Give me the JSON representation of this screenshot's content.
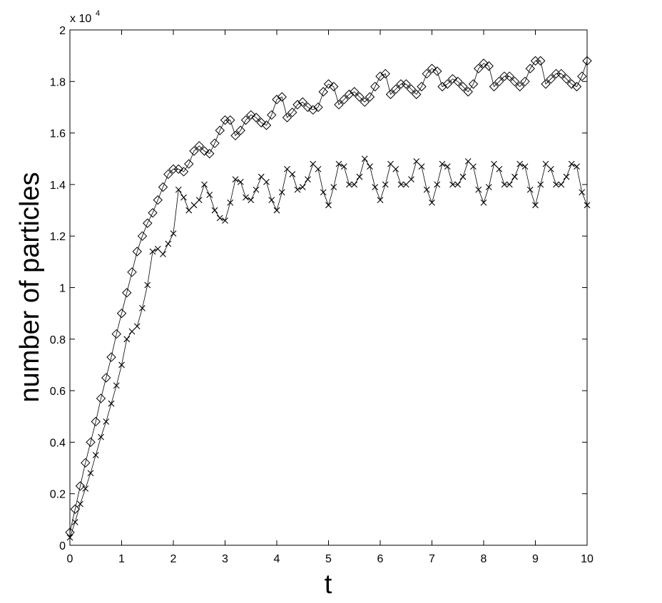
{
  "chart_data": {
    "type": "line",
    "ylabel": "number of particles",
    "xlabel": "t",
    "y_scale_label": "x 10",
    "y_scale_exponent": "4",
    "x": [
      0,
      0.1,
      0.2,
      0.3,
      0.4,
      0.5,
      0.6,
      0.7,
      0.8,
      0.9,
      1,
      1.1,
      1.2,
      1.3,
      1.4,
      1.5,
      1.6,
      1.7,
      1.8,
      1.9,
      2,
      2.1,
      2.2,
      2.3,
      2.4,
      2.5,
      2.6,
      2.7,
      2.8,
      2.9,
      3,
      3.1,
      3.2,
      3.3,
      3.4,
      3.5,
      3.6,
      3.7,
      3.8,
      3.9,
      4,
      4.1,
      4.2,
      4.3,
      4.4,
      4.5,
      4.6,
      4.7,
      4.8,
      4.9,
      5,
      5.1,
      5.2,
      5.3,
      5.4,
      5.5,
      5.6,
      5.7,
      5.8,
      5.9,
      6,
      6.1,
      6.2,
      6.3,
      6.4,
      6.5,
      6.6,
      6.7,
      6.8,
      6.9,
      7,
      7.1,
      7.2,
      7.3,
      7.4,
      7.5,
      7.6,
      7.7,
      7.8,
      7.9,
      8,
      8.1,
      8.2,
      8.3,
      8.4,
      8.5,
      8.6,
      8.7,
      8.8,
      8.9,
      9,
      9.1,
      9.2,
      9.3,
      9.4,
      9.5,
      9.6,
      9.7,
      9.8,
      9.9,
      10
    ],
    "series": [
      {
        "color": "#000000",
        "marker": "diamond",
        "values": [
          0.05,
          0.14,
          0.23,
          0.32,
          0.4,
          0.48,
          0.57,
          0.65,
          0.73,
          0.82,
          0.9,
          0.98,
          1.06,
          1.14,
          1.2,
          1.25,
          1.29,
          1.34,
          1.39,
          1.44,
          1.46,
          1.46,
          1.45,
          1.48,
          1.53,
          1.55,
          1.53,
          1.52,
          1.56,
          1.61,
          1.65,
          1.65,
          1.59,
          1.61,
          1.65,
          1.67,
          1.66,
          1.64,
          1.63,
          1.67,
          1.73,
          1.74,
          1.66,
          1.68,
          1.71,
          1.72,
          1.7,
          1.69,
          1.7,
          1.76,
          1.79,
          1.78,
          1.71,
          1.73,
          1.75,
          1.76,
          1.74,
          1.72,
          1.74,
          1.78,
          1.82,
          1.83,
          1.75,
          1.77,
          1.79,
          1.79,
          1.77,
          1.75,
          1.78,
          1.83,
          1.85,
          1.84,
          1.78,
          1.79,
          1.81,
          1.8,
          1.78,
          1.76,
          1.79,
          1.85,
          1.87,
          1.86,
          1.78,
          1.8,
          1.82,
          1.82,
          1.8,
          1.78,
          1.8,
          1.85,
          1.88,
          1.88,
          1.79,
          1.81,
          1.83,
          1.83,
          1.81,
          1.79,
          1.78,
          1.82,
          1.88
        ]
      },
      {
        "color": "#000000",
        "marker": "x",
        "values": [
          0.03,
          0.09,
          0.16,
          0.22,
          0.28,
          0.35,
          0.42,
          0.48,
          0.55,
          0.62,
          0.7,
          0.8,
          0.83,
          0.85,
          0.92,
          1.01,
          1.14,
          1.15,
          1.13,
          1.17,
          1.21,
          1.38,
          1.35,
          1.3,
          1.32,
          1.34,
          1.4,
          1.36,
          1.3,
          1.27,
          1.26,
          1.33,
          1.42,
          1.41,
          1.35,
          1.34,
          1.38,
          1.43,
          1.41,
          1.34,
          1.3,
          1.37,
          1.46,
          1.44,
          1.38,
          1.39,
          1.42,
          1.48,
          1.46,
          1.37,
          1.32,
          1.39,
          1.48,
          1.47,
          1.4,
          1.4,
          1.43,
          1.5,
          1.47,
          1.39,
          1.34,
          1.4,
          1.48,
          1.46,
          1.4,
          1.4,
          1.42,
          1.49,
          1.47,
          1.38,
          1.33,
          1.4,
          1.48,
          1.47,
          1.4,
          1.4,
          1.43,
          1.49,
          1.47,
          1.38,
          1.33,
          1.39,
          1.48,
          1.46,
          1.4,
          1.4,
          1.43,
          1.48,
          1.47,
          1.38,
          1.32,
          1.4,
          1.48,
          1.46,
          1.4,
          1.4,
          1.43,
          1.48,
          1.47,
          1.37,
          1.32
        ]
      }
    ],
    "xlim": [
      0,
      10
    ],
    "xticks": [
      0,
      1,
      2,
      3,
      4,
      5,
      6,
      7,
      8,
      9,
      10
    ],
    "ylim": [
      0,
      2
    ],
    "yticks": [
      0,
      0.2,
      0.4,
      0.6,
      0.8,
      1,
      1.2,
      1.4,
      1.6,
      1.8,
      2
    ],
    "grid": false
  }
}
